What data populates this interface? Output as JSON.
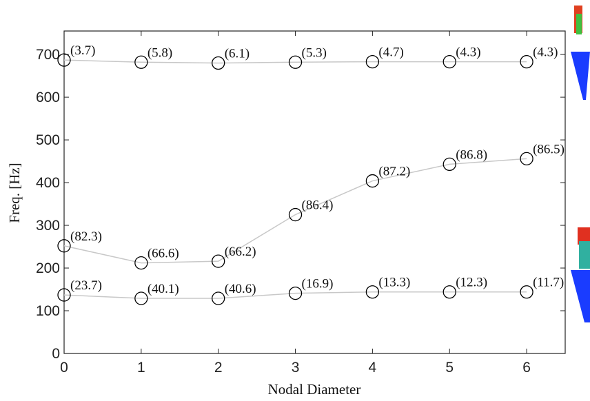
{
  "chart_data": {
    "type": "line",
    "x_label": "Nodal Diameter",
    "y_label": "Freq. [Hz]",
    "x": [
      0,
      1,
      2,
      3,
      4,
      5,
      6
    ],
    "xlim": [
      0,
      6.5
    ],
    "xticks": [
      0,
      1,
      2,
      3,
      4,
      5,
      6
    ],
    "ylim": [
      0,
      755
    ],
    "yticks": [
      0,
      100,
      200,
      300,
      400,
      500,
      600,
      700
    ],
    "marker_color": "#000000",
    "series": [
      {
        "color": "#c8c8c8",
        "values": [
          687,
          682,
          680,
          682,
          683,
          683,
          683
        ],
        "point_labels": [
          "(3.7)",
          "(5.8)",
          "(6.1)",
          "(5.3)",
          "(4.7)",
          "(4.3)",
          "(4.3)"
        ]
      },
      {
        "color": "#c8c8c8",
        "values": [
          252,
          212,
          216,
          325,
          404,
          443,
          456
        ],
        "point_labels": [
          "(82.3)",
          "(66.6)",
          "(66.2)",
          "(86.4)",
          "(87.2)",
          "(86.8)",
          "(86.5)"
        ]
      },
      {
        "color": "#c8c8c8",
        "values": [
          137,
          129,
          129,
          141,
          144,
          144,
          144
        ],
        "point_labels": [
          "(23.7)",
          "(40.1)",
          "(40.6)",
          "(16.9)",
          "(13.3)",
          "(12.3)",
          "(11.7)"
        ]
      }
    ]
  }
}
